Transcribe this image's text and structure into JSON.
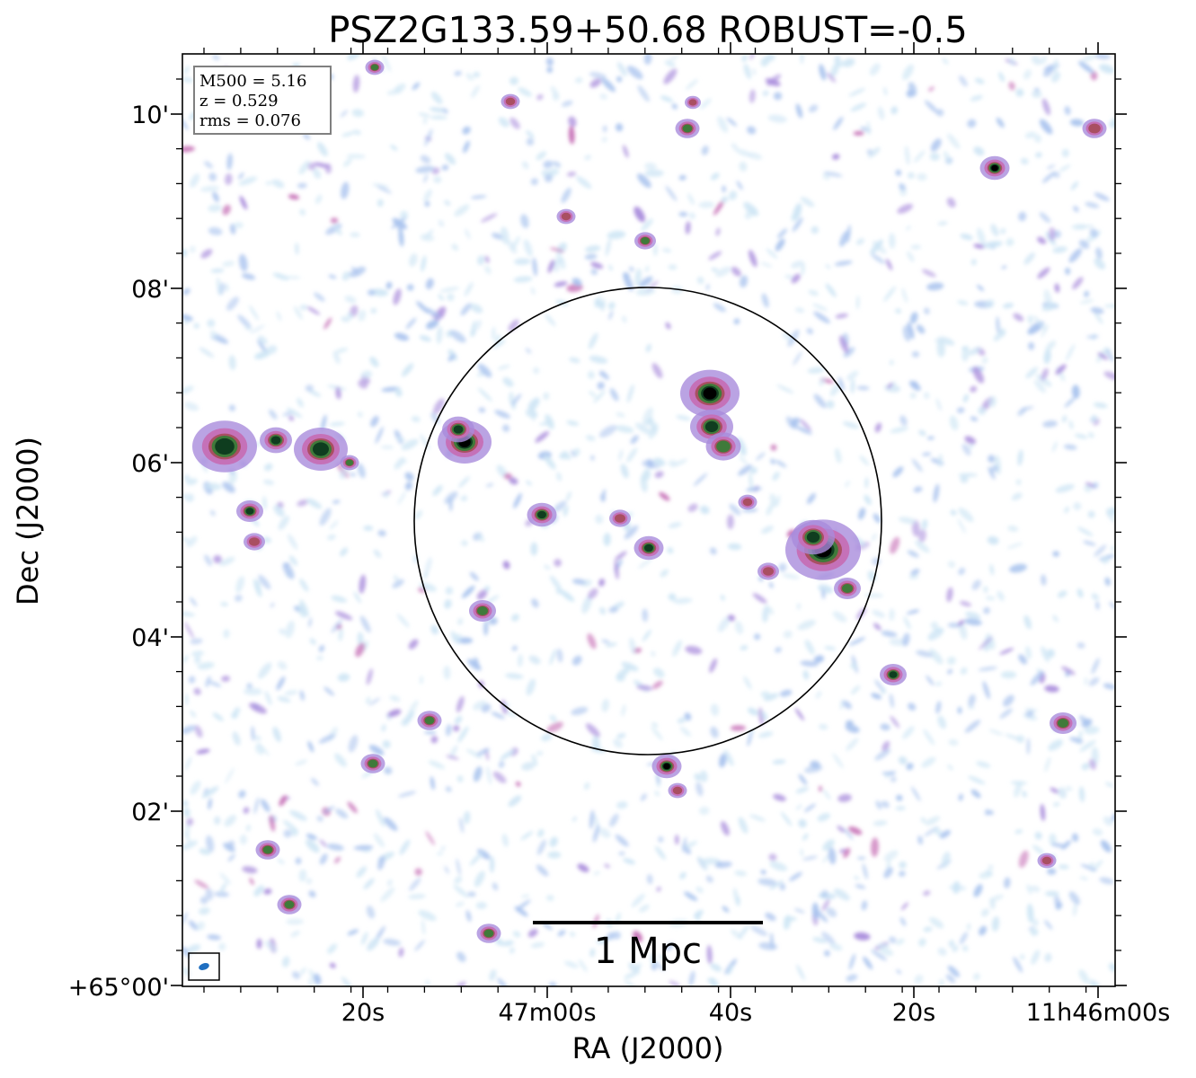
{
  "chart_data": {
    "type": "heatmap",
    "title": "PSZ2G133.59+50.68 ROBUST=-0.5",
    "xlabel": "RA (J2000)",
    "ylabel": "Dec (J2000)",
    "x_ticks": [
      "20s",
      "47m00s",
      "40s",
      "20s",
      "11h46m00s"
    ],
    "y_ticks": [
      "10'",
      "08'",
      "06'",
      "04'",
      "02'",
      "+65°00'"
    ],
    "info_lines": [
      "M500 = 5.16",
      "z = 0.529",
      "rms = 0.076"
    ],
    "scalebar_label": "1 Mpc",
    "colormap": [
      "#ffffff",
      "#cfe6f5",
      "#a9c3ee",
      "#a98cdc",
      "#c66fb6",
      "#a94f62",
      "#3f7a3a",
      "#0f3d1f",
      "#000000"
    ],
    "overlay": {
      "circle_color": "#000000",
      "beam_color": "#1f6fc0"
    }
  }
}
